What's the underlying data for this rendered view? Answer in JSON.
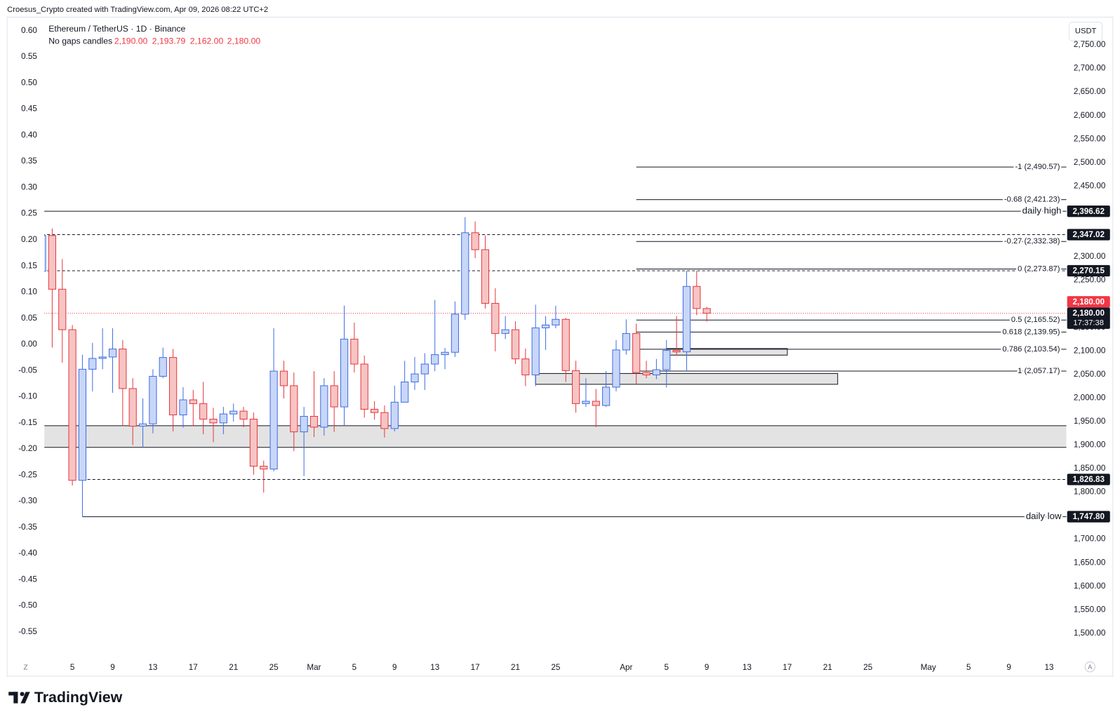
{
  "header": {
    "attribution": "Croesus_Crypto created with TradingView.com, Apr 09, 2026 08:22 UTC+2",
    "brand": "TradingView"
  },
  "toolbar": {
    "currency": "USDT",
    "left_button": "Z",
    "right_button": "A"
  },
  "chart_data": {
    "type": "candlestick",
    "title": "Ethereum / TetherUS · 1D · Binance",
    "subtitle": "No gaps candles",
    "last_bar_labels": [
      "2,190.00",
      "2,193.79",
      "2,162.00",
      "2,180.00"
    ],
    "up_color": "#3f6fe6",
    "up_fill": "#c8d6f7",
    "down_color": "#e5393d",
    "down_fill": "#f7c4c4",
    "grid": false,
    "x": [
      "2026-02-02",
      "2026-02-03",
      "2026-02-04",
      "2026-02-05",
      "2026-02-06",
      "2026-02-07",
      "2026-02-08",
      "2026-02-09",
      "2026-02-10",
      "2026-02-11",
      "2026-02-12",
      "2026-02-13",
      "2026-02-14",
      "2026-02-15",
      "2026-02-16",
      "2026-02-17",
      "2026-02-18",
      "2026-02-19",
      "2026-02-20",
      "2026-02-21",
      "2026-02-22",
      "2026-02-23",
      "2026-02-24",
      "2026-02-25",
      "2026-02-26",
      "2026-02-27",
      "2026-02-28",
      "2026-03-01",
      "2026-03-02",
      "2026-03-03",
      "2026-03-04",
      "2026-03-05",
      "2026-03-06",
      "2026-03-07",
      "2026-03-08",
      "2026-03-09",
      "2026-03-10",
      "2026-03-11",
      "2026-03-12",
      "2026-03-13",
      "2026-03-14",
      "2026-03-15",
      "2026-03-16",
      "2026-03-17",
      "2026-03-18",
      "2026-03-19",
      "2026-03-20",
      "2026-03-21",
      "2026-03-22",
      "2026-03-23",
      "2026-03-24",
      "2026-03-25",
      "2026-03-26",
      "2026-03-27",
      "2026-03-28",
      "2026-03-29",
      "2026-03-30",
      "2026-03-31",
      "2026-04-01",
      "2026-04-02",
      "2026-04-03",
      "2026-04-04",
      "2026-04-05",
      "2026-04-06",
      "2026-04-07",
      "2026-04-08",
      "2026-04-09"
    ],
    "open": [
      2269,
      2345,
      2231,
      2145,
      1825,
      2061,
      2084,
      2087,
      2104,
      2020,
      1940,
      1945,
      2046,
      2086,
      1964,
      1996,
      1988,
      1955,
      1947,
      1966,
      1972,
      1955,
      1855,
      1849,
      2057,
      2026,
      1928,
      1961,
      1938,
      2026,
      1981,
      2125,
      2072,
      1976,
      1969,
      1935,
      1991,
      2034,
      2051,
      2072,
      2092,
      2097,
      2178,
      2351,
      2315,
      2201,
      2137,
      2145,
      2083,
      2049,
      2149,
      2155,
      2167,
      2058,
      1988,
      1993,
      1984,
      2023,
      2102,
      2137,
      2054,
      2049,
      2060,
      2101,
      2098,
      2237,
      2190
    ],
    "high": [
      2350,
      2360,
      2295,
      2155,
      2092,
      2117,
      2148,
      2148,
      2123,
      2042,
      1999,
      2061,
      2107,
      2104,
      2023,
      2017,
      2034,
      1979,
      1981,
      1988,
      1981,
      1969,
      1867,
      2148,
      2079,
      2054,
      1981,
      2057,
      2042,
      2057,
      2196,
      2160,
      2090,
      1993,
      1984,
      2026,
      2079,
      2087,
      2095,
      2208,
      2106,
      2205,
      2384,
      2375,
      2345,
      2233,
      2174,
      2163,
      2105,
      2198,
      2174,
      2196,
      2170,
      2079,
      2042,
      2019,
      2057,
      2123,
      2167,
      2158,
      2079,
      2083,
      2123,
      2174,
      2270,
      2270,
      2193.79
    ],
    "low": [
      2262,
      2107,
      2075,
      1814,
      1747.8,
      2014,
      2061,
      2011,
      1940,
      1900,
      1894,
      1925,
      2042,
      1929,
      1937,
      1940,
      1923,
      1906,
      1923,
      1950,
      1938,
      1837,
      1799,
      1844,
      1999,
      1887,
      1834,
      1917,
      1920,
      1928,
      1941,
      2054,
      1958,
      1954,
      1916,
      1929,
      1991,
      2017,
      2017,
      2057,
      2061,
      2087,
      2166,
      2297,
      2190,
      2099,
      2125,
      2072,
      2025,
      2025,
      2102,
      2148,
      2034,
      1969,
      1981,
      1938,
      1981,
      2014,
      2092,
      2029,
      2042,
      2040,
      2022,
      2090,
      2057,
      2176,
      2162
    ],
    "close": [
      2345,
      2231,
      2145,
      1825,
      2061,
      2084,
      2087,
      2104,
      2020,
      1940,
      1945,
      2046,
      2086,
      1964,
      1996,
      1988,
      1955,
      1947,
      1966,
      1972,
      1955,
      1855,
      1849,
      2057,
      2026,
      1928,
      1961,
      1938,
      2026,
      1981,
      2125,
      2072,
      1976,
      1969,
      1935,
      1991,
      2034,
      2051,
      2072,
      2092,
      2097,
      2178,
      2351,
      2315,
      2201,
      2137,
      2145,
      2083,
      2049,
      2149,
      2155,
      2167,
      2058,
      1988,
      1993,
      1984,
      2023,
      2102,
      2137,
      2054,
      2049,
      2060,
      2101,
      2098,
      2237,
      2190,
      2180
    ],
    "xlim": [
      "2026-02-02",
      "2026-05-15"
    ],
    "xticks": [
      {
        "value": "2026-02-05",
        "label": "5"
      },
      {
        "value": "2026-02-09",
        "label": "9"
      },
      {
        "value": "2026-02-13",
        "label": "13"
      },
      {
        "value": "2026-02-17",
        "label": "17"
      },
      {
        "value": "2026-02-21",
        "label": "21"
      },
      {
        "value": "2026-02-25",
        "label": "25"
      },
      {
        "value": "2026-03-01",
        "label": "Mar"
      },
      {
        "value": "2026-03-05",
        "label": "5"
      },
      {
        "value": "2026-03-09",
        "label": "9"
      },
      {
        "value": "2026-03-13",
        "label": "13"
      },
      {
        "value": "2026-03-17",
        "label": "17"
      },
      {
        "value": "2026-03-21",
        "label": "21"
      },
      {
        "value": "2026-03-25",
        "label": "25"
      },
      {
        "value": "2026-04-01",
        "label": "Apr"
      },
      {
        "value": "2026-04-05",
        "label": "5"
      },
      {
        "value": "2026-04-09",
        "label": "9"
      },
      {
        "value": "2026-04-13",
        "label": "13"
      },
      {
        "value": "2026-04-17",
        "label": "17"
      },
      {
        "value": "2026-04-21",
        "label": "21"
      },
      {
        "value": "2026-04-25",
        "label": "25"
      },
      {
        "value": "2026-05-01",
        "label": "May"
      },
      {
        "value": "2026-05-05",
        "label": "5"
      },
      {
        "value": "2026-05-09",
        "label": "9"
      },
      {
        "value": "2026-05-13",
        "label": "13"
      }
    ],
    "ylim": [
      1453,
      2809
    ],
    "yticks": [
      {
        "value": 1500,
        "label": "1,500.00"
      },
      {
        "value": 1550,
        "label": "1,550.00"
      },
      {
        "value": 1600,
        "label": "1,600.00"
      },
      {
        "value": 1650,
        "label": "1,650.00"
      },
      {
        "value": 1700,
        "label": "1,700.00"
      },
      {
        "value": 1750,
        "label": "1,750.00"
      },
      {
        "value": 1800,
        "label": "1,800.00"
      },
      {
        "value": 1850,
        "label": "1,850.00"
      },
      {
        "value": 1900,
        "label": "1,900.00"
      },
      {
        "value": 1950,
        "label": "1,950.00"
      },
      {
        "value": 2000,
        "label": "2,000.00"
      },
      {
        "value": 2050,
        "label": "2,050.00"
      },
      {
        "value": 2100,
        "label": "2,100.00"
      },
      {
        "value": 2150,
        "label": "2,150.00"
      },
      {
        "value": 2200,
        "label": "2,200.00"
      },
      {
        "value": 2250,
        "label": "2,250.00"
      },
      {
        "value": 2300,
        "label": "2,300.00"
      },
      {
        "value": 2350,
        "label": "2,350.00"
      },
      {
        "value": 2400,
        "label": "2,400.00"
      },
      {
        "value": 2450,
        "label": "2,450.00"
      },
      {
        "value": 2500,
        "label": "2,500.00"
      },
      {
        "value": 2550,
        "label": "2,550.00"
      },
      {
        "value": 2600,
        "label": "2,600.00"
      },
      {
        "value": 2650,
        "label": "2,650.00"
      },
      {
        "value": 2700,
        "label": "2,700.00"
      },
      {
        "value": 2750,
        "label": "2,750.00"
      }
    ],
    "y2lim": [
      -0.595,
      0.626
    ],
    "y2ticks": [
      {
        "value": 0.6,
        "label": "0.60"
      },
      {
        "value": 0.55,
        "label": "0.55"
      },
      {
        "value": 0.5,
        "label": "0.50"
      },
      {
        "value": 0.45,
        "label": "0.45"
      },
      {
        "value": 0.4,
        "label": "0.40"
      },
      {
        "value": 0.35,
        "label": "0.35"
      },
      {
        "value": 0.3,
        "label": "0.30"
      },
      {
        "value": 0.25,
        "label": "0.25"
      },
      {
        "value": 0.2,
        "label": "0.20"
      },
      {
        "value": 0.15,
        "label": "0.15"
      },
      {
        "value": 0.1,
        "label": "0.10"
      },
      {
        "value": 0.05,
        "label": "0.05"
      },
      {
        "value": 0,
        "label": "0.00"
      },
      {
        "value": -0.05,
        "label": "-0.05"
      },
      {
        "value": -0.1,
        "label": "-0.10"
      },
      {
        "value": -0.15,
        "label": "-0.15"
      },
      {
        "value": -0.2,
        "label": "-0.20"
      },
      {
        "value": -0.25,
        "label": "-0.25"
      },
      {
        "value": -0.3,
        "label": "-0.30"
      },
      {
        "value": -0.35,
        "label": "-0.35"
      },
      {
        "value": -0.4,
        "label": "-0.40"
      },
      {
        "value": -0.45,
        "label": "-0.45"
      },
      {
        "value": -0.5,
        "label": "-0.50"
      },
      {
        "value": -0.55,
        "label": "-0.55"
      }
    ],
    "levels": [
      {
        "price": 2396.62,
        "price_label": "2,396.62",
        "label": "daily high",
        "style": "solid",
        "start": "2026-02-02"
      },
      {
        "price": 2347.02,
        "price_label": "2,347.02",
        "style": "dashed",
        "start": "2026-02-02"
      },
      {
        "price": 2270.15,
        "price_label": "2,270.15",
        "style": "dashed",
        "start": "2026-02-02"
      },
      {
        "price": 1826.83,
        "price_label": "1,826.83",
        "style": "dashed",
        "start": "2026-02-06"
      },
      {
        "price": 1747.8,
        "price_label": "1,747.80",
        "label": "daily low",
        "style": "solid",
        "start": "2026-02-06"
      }
    ],
    "fibonacci": {
      "start": "2026-04-02",
      "levels": [
        {
          "label": "-1 (2,490.57)",
          "price": 2490.57
        },
        {
          "label": "-0.68 (2,421.23)",
          "price": 2421.23
        },
        {
          "label": "-0.27 (2,332.38)",
          "price": 2332.38
        },
        {
          "label": "0 (2,273.87)",
          "price": 2273.87
        },
        {
          "label": "0.5 (2,165.52)",
          "price": 2165.52
        },
        {
          "label": "0.618 (2,139.95)",
          "price": 2139.95
        },
        {
          "label": "0.786 (2,103.54)",
          "price": 2103.54
        },
        {
          "label": "1 (2,057.17)",
          "price": 2057.17
        }
      ]
    },
    "zones": [
      {
        "low": 1895,
        "high": 1941
      }
    ],
    "boxes": [
      {
        "start": "2026-04-05",
        "end": "2026-04-17",
        "low": 2091,
        "high": 2105
      },
      {
        "start": "2026-03-23",
        "end": "2026-04-22",
        "low": 2029,
        "high": 2052
      }
    ],
    "last_price": {
      "value": 2180,
      "label": "2,180.00",
      "countdown": "17:37:38",
      "color": "#f23645"
    }
  }
}
